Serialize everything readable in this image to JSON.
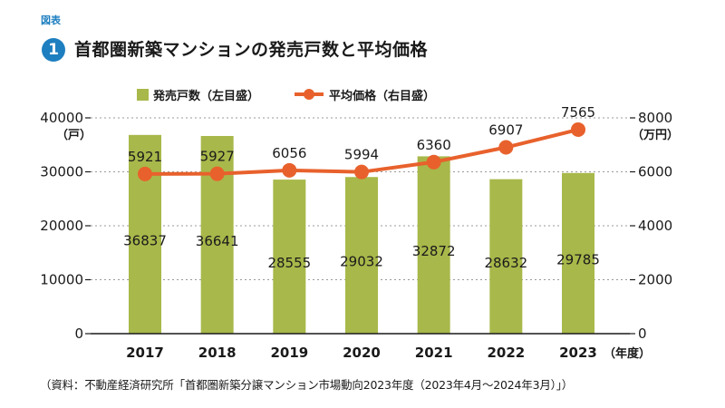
{
  "figure_label": "図表",
  "figure_number": "1",
  "title": "首都圏新築マンションの発売戸数と平均価格",
  "source_note": "（資料：不動産経済研究所「首都圏新築分譲マンション市場動向2023年度（2023年4月～2024年3月）」）",
  "colors": {
    "bar": "#a8b84a",
    "line": "#e8612c",
    "accent": "#1e7fc0",
    "grid": "#9a9a9a"
  },
  "chart_data": {
    "type": "bar",
    "categories": [
      "2017",
      "2018",
      "2019",
      "2020",
      "2021",
      "2022",
      "2023"
    ],
    "x_unit": "（年度）",
    "series": [
      {
        "name": "発売戸数（左目盛）",
        "type": "bar",
        "axis": "left",
        "values": [
          36837,
          36641,
          28555,
          29032,
          32872,
          28632,
          29785
        ]
      },
      {
        "name": "平均価格（右目盛）",
        "type": "line",
        "axis": "right",
        "values": [
          5921,
          5927,
          6056,
          5994,
          6360,
          6907,
          7565
        ]
      }
    ],
    "y_left": {
      "unit": "（戸）",
      "ylim": [
        0,
        40000
      ],
      "ticks": [
        "0",
        "10000",
        "20000",
        "30000",
        "40000"
      ]
    },
    "y_right": {
      "unit": "（万円）",
      "ylim": [
        0,
        8000
      ],
      "ticks": [
        "0",
        "2000",
        "4000",
        "6000",
        "8000"
      ]
    },
    "grid": true,
    "legend_position": "top"
  }
}
